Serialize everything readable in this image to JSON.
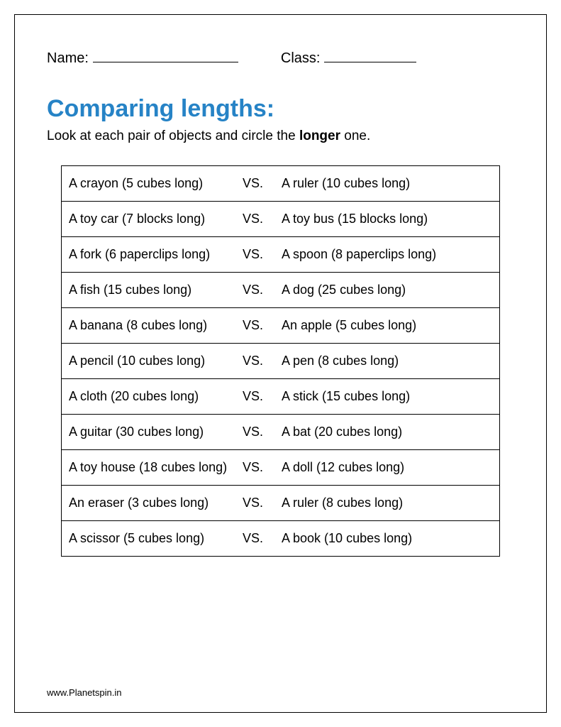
{
  "header": {
    "name_label": "Name:",
    "class_label": "Class:"
  },
  "title": "Comparing lengths:",
  "instruction_prefix": "Look at each pair of objects and circle the ",
  "instruction_bold": "longer",
  "instruction_suffix": " one.",
  "vs_label": "VS.",
  "colors": {
    "title": "#2683c6",
    "text": "#000000",
    "border": "#000000",
    "background": "#ffffff"
  },
  "typography": {
    "body_font": "Comic Sans MS",
    "title_fontsize": 34,
    "body_fontsize": 18,
    "header_fontsize": 20,
    "instruction_fontsize": 19,
    "footer_fontsize": 13
  },
  "rows": [
    {
      "left": "A crayon (5 cubes long)",
      "right": "A ruler (10 cubes long)"
    },
    {
      "left": "A toy car (7 blocks long)",
      "right": "A toy bus (15 blocks long)"
    },
    {
      "left": "A fork (6 paperclips long)",
      "right": "A spoon (8 paperclips long)"
    },
    {
      "left": "A fish (15 cubes long)",
      "right": "A dog (25 cubes long)"
    },
    {
      "left": "A banana (8 cubes long)",
      "right": "An apple (5 cubes long)"
    },
    {
      "left": "A pencil (10 cubes long)",
      "right": "A pen (8 cubes long)"
    },
    {
      "left": "A cloth (20 cubes long)",
      "right": "A stick (15 cubes long)"
    },
    {
      "left": "A guitar (30 cubes long)",
      "right": "A bat (20 cubes long)"
    },
    {
      "left": "A toy house (18 cubes long)",
      "right": "A doll (12 cubes long)"
    },
    {
      "left": "An eraser (3 cubes long)",
      "right": "A ruler (8 cubes long)"
    },
    {
      "left": "A scissor (5 cubes long)",
      "right": "A book (10 cubes long)"
    }
  ],
  "footer": "www.Planetspin.in"
}
